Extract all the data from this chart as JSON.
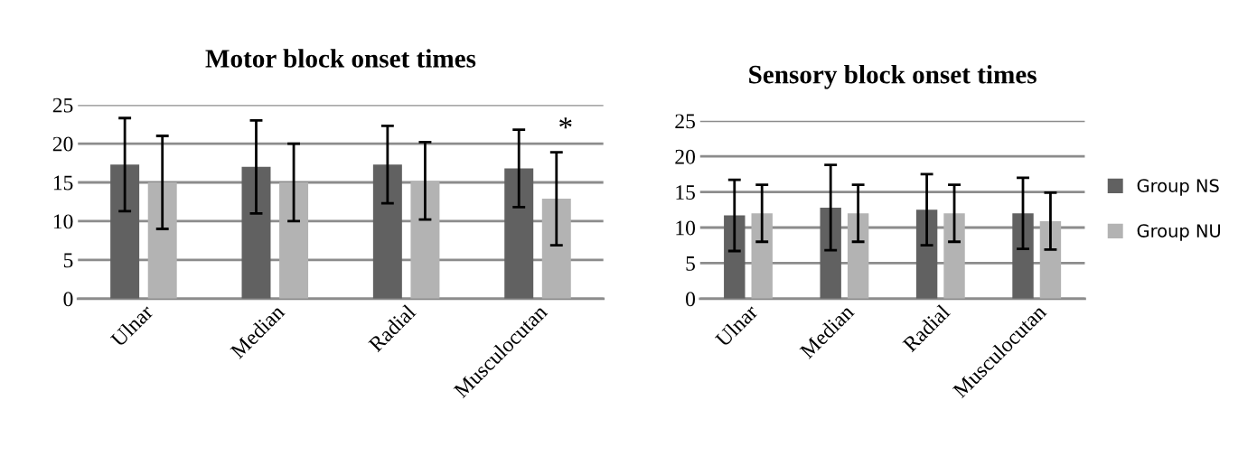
{
  "chart_data": [
    {
      "type": "bar",
      "title": "Motor block onset times",
      "categories": [
        "Ulnar",
        "Median",
        "Radial",
        "Musculocutan"
      ],
      "series": [
        {
          "color": "#616161",
          "values": [
            17.3,
            17.0,
            17.3,
            16.8
          ],
          "errors": [
            6,
            6,
            5,
            5
          ]
        },
        {
          "color": "#b3b3b3",
          "values": [
            15.0,
            15.0,
            15.2,
            12.9
          ],
          "errors": [
            6,
            5,
            5,
            6
          ]
        }
      ],
      "ylim": [
        0,
        25
      ],
      "yticks": [
        0,
        5,
        10,
        15,
        20,
        25
      ],
      "grid": "y",
      "legend": false,
      "annotations": [
        "*"
      ]
    },
    {
      "type": "bar",
      "title": "Sensory block onset times",
      "categories": [
        "Ulnar",
        "Median",
        "Radial",
        "Musculocutan"
      ],
      "series": [
        {
          "name": "Group NS",
          "color": "#616161",
          "values": [
            11.7,
            12.8,
            12.5,
            12.0
          ],
          "errors": [
            5,
            6,
            5,
            5
          ]
        },
        {
          "name": "Group NU",
          "color": "#b3b3b3",
          "values": [
            12.0,
            12.0,
            12.0,
            10.9
          ],
          "errors": [
            4,
            4,
            4,
            4
          ]
        }
      ],
      "ylim": [
        0,
        25
      ],
      "yticks": [
        0,
        5,
        10,
        15,
        20,
        25
      ],
      "grid": "y",
      "legend": "right"
    }
  ]
}
